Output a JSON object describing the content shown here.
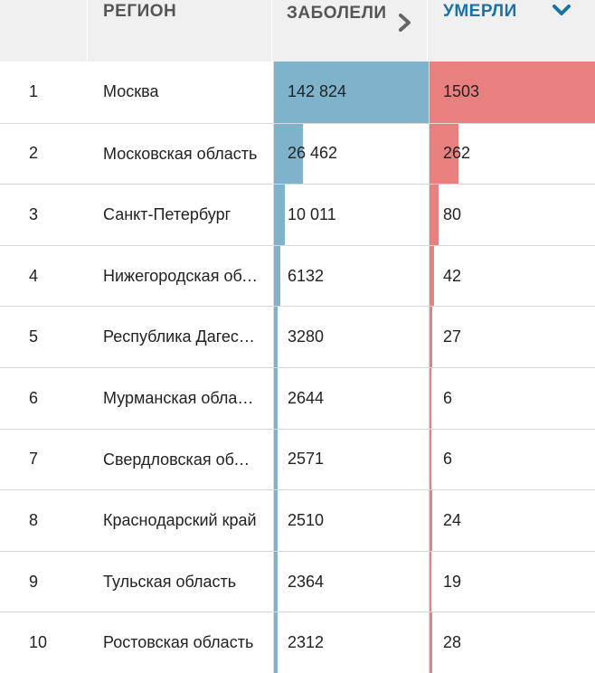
{
  "header": {
    "num": "",
    "region": "РЕГИОН",
    "cases": "ЗАБОЛЕЛИ",
    "deaths": "УМЕРЛИ"
  },
  "colors": {
    "cases_bar": "#7fb3cc",
    "deaths_bar": "#e88080",
    "active_header": "#1a73a8"
  },
  "icons": {
    "cases_sort": "chevron-right-icon",
    "deaths_sort": "chevron-down-icon"
  },
  "rows": [
    {
      "n": "1",
      "region": "Москва",
      "cases": "142 824",
      "deaths": "1503",
      "cases_frac": 1.0,
      "deaths_frac": 1.0
    },
    {
      "n": "2",
      "region": "Московская область",
      "cases": "26 462",
      "deaths": "262",
      "cases_frac": 0.185,
      "deaths_frac": 0.174
    },
    {
      "n": "3",
      "region": "Санкт-Петербург",
      "cases": "10 011",
      "deaths": "80",
      "cases_frac": 0.07,
      "deaths_frac": 0.053
    },
    {
      "n": "4",
      "region": "Нижегородская область",
      "cases": "6132",
      "deaths": "42",
      "cases_frac": 0.043,
      "deaths_frac": 0.028
    },
    {
      "n": "5",
      "region": "Республика Дагестан",
      "cases": "3280",
      "deaths": "27",
      "cases_frac": 0.023,
      "deaths_frac": 0.018
    },
    {
      "n": "6",
      "region": "Мурманская область",
      "cases": "2644",
      "deaths": "6",
      "cases_frac": 0.019,
      "deaths_frac": 0.004
    },
    {
      "n": "7",
      "region": "Свердловская область",
      "cases": "2571",
      "deaths": "6",
      "cases_frac": 0.018,
      "deaths_frac": 0.004
    },
    {
      "n": "8",
      "region": "Краснодарский край",
      "cases": "2510",
      "deaths": "24",
      "cases_frac": 0.018,
      "deaths_frac": 0.016
    },
    {
      "n": "9",
      "region": "Тульская область",
      "cases": "2364",
      "deaths": "19",
      "cases_frac": 0.017,
      "deaths_frac": 0.013
    },
    {
      "n": "10",
      "region": "Ростовская область",
      "cases": "2312",
      "deaths": "28",
      "cases_frac": 0.016,
      "deaths_frac": 0.019
    }
  ]
}
